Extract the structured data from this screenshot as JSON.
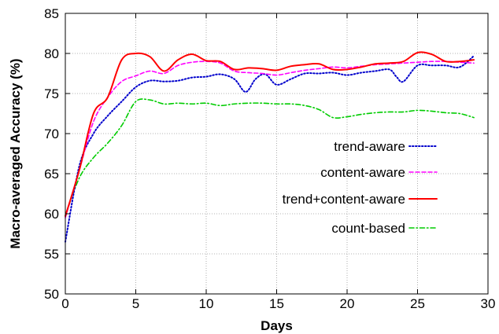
{
  "chart_data": {
    "type": "line",
    "title": "",
    "xlabel": "Days",
    "ylabel": "Macro-averaged Accuracy (%)",
    "xlim": [
      0,
      30
    ],
    "ylim": [
      50,
      85
    ],
    "xticks": [
      0,
      5,
      10,
      15,
      20,
      25,
      30
    ],
    "yticks": [
      50,
      55,
      60,
      65,
      70,
      75,
      80,
      85
    ],
    "xtick_labels": [
      "0",
      "5",
      "10",
      "15",
      "20",
      "25",
      "30"
    ],
    "ytick_labels": [
      "50",
      "55",
      "60",
      "65",
      "70",
      "75",
      "80",
      "85"
    ],
    "grid": true,
    "legend_position": "center-right",
    "series": [
      {
        "name": "trend-aware",
        "color": "#0000cc",
        "dash": "dotted",
        "x": [
          0,
          1,
          2,
          3,
          4,
          5,
          6,
          7,
          8,
          9,
          10,
          11,
          12,
          12.8,
          13.5,
          14.2,
          15,
          16,
          17,
          18,
          19,
          20,
          21,
          22,
          23,
          23.5,
          24,
          25,
          26,
          27,
          28,
          29
        ],
        "y": [
          56.5,
          66.0,
          70.0,
          72.2,
          74.0,
          75.8,
          76.6,
          76.5,
          76.6,
          77.0,
          77.1,
          77.4,
          76.8,
          75.2,
          76.8,
          77.4,
          76.1,
          76.8,
          77.5,
          77.5,
          77.6,
          77.3,
          77.6,
          77.8,
          78.0,
          77.1,
          76.5,
          78.5,
          78.5,
          78.5,
          78.3,
          79.7
        ]
      },
      {
        "name": "content-aware",
        "color": "#ff00ff",
        "dash": "dashed",
        "x": [
          0,
          1,
          2,
          3,
          4,
          5,
          6,
          7,
          8,
          9,
          10,
          11,
          12,
          13,
          14,
          15,
          16,
          17,
          18,
          19,
          20,
          21,
          22,
          23,
          24,
          25,
          26,
          27,
          28,
          29
        ],
        "y": [
          59.5,
          65.5,
          71.5,
          74.5,
          76.5,
          77.2,
          77.8,
          77.5,
          78.5,
          78.9,
          79.0,
          78.8,
          77.8,
          77.6,
          77.5,
          77.3,
          77.6,
          77.9,
          78.1,
          78.3,
          78.2,
          78.4,
          78.6,
          78.7,
          78.8,
          78.9,
          79.0,
          79.0,
          78.9,
          78.8
        ]
      },
      {
        "name": "trend+content-aware",
        "color": "#ff0000",
        "dash": "solid",
        "x": [
          0,
          1,
          2,
          3,
          4,
          5,
          6,
          7,
          8,
          9,
          10,
          11,
          12,
          13,
          14,
          15,
          16,
          17,
          18,
          19,
          20,
          21,
          22,
          23,
          24,
          25,
          26,
          27,
          28,
          29
        ],
        "y": [
          59.7,
          65.5,
          72.5,
          74.5,
          79.2,
          80.0,
          79.6,
          77.8,
          79.2,
          79.9,
          79.1,
          79.0,
          78.0,
          78.2,
          78.1,
          77.9,
          78.4,
          78.6,
          78.7,
          78.0,
          78.0,
          78.3,
          78.7,
          78.8,
          79.0,
          80.1,
          79.9,
          79.0,
          79.0,
          79.2
        ]
      },
      {
        "name": "count-based",
        "color": "#00cc00",
        "dash": "dashdot",
        "x": [
          0,
          1,
          2,
          3,
          4,
          5,
          6,
          7,
          8,
          9,
          10,
          11,
          12,
          13,
          14,
          15,
          16,
          17,
          18,
          19,
          20,
          21,
          22,
          23,
          24,
          25,
          26,
          27,
          28,
          29
        ],
        "y": [
          59.8,
          64.5,
          67.0,
          68.8,
          71.0,
          74.0,
          74.2,
          73.7,
          73.8,
          73.7,
          73.8,
          73.5,
          73.7,
          73.8,
          73.8,
          73.7,
          73.7,
          73.5,
          73.0,
          72.0,
          72.1,
          72.4,
          72.6,
          72.7,
          72.7,
          72.9,
          72.8,
          72.6,
          72.5,
          72.0
        ]
      }
    ]
  }
}
